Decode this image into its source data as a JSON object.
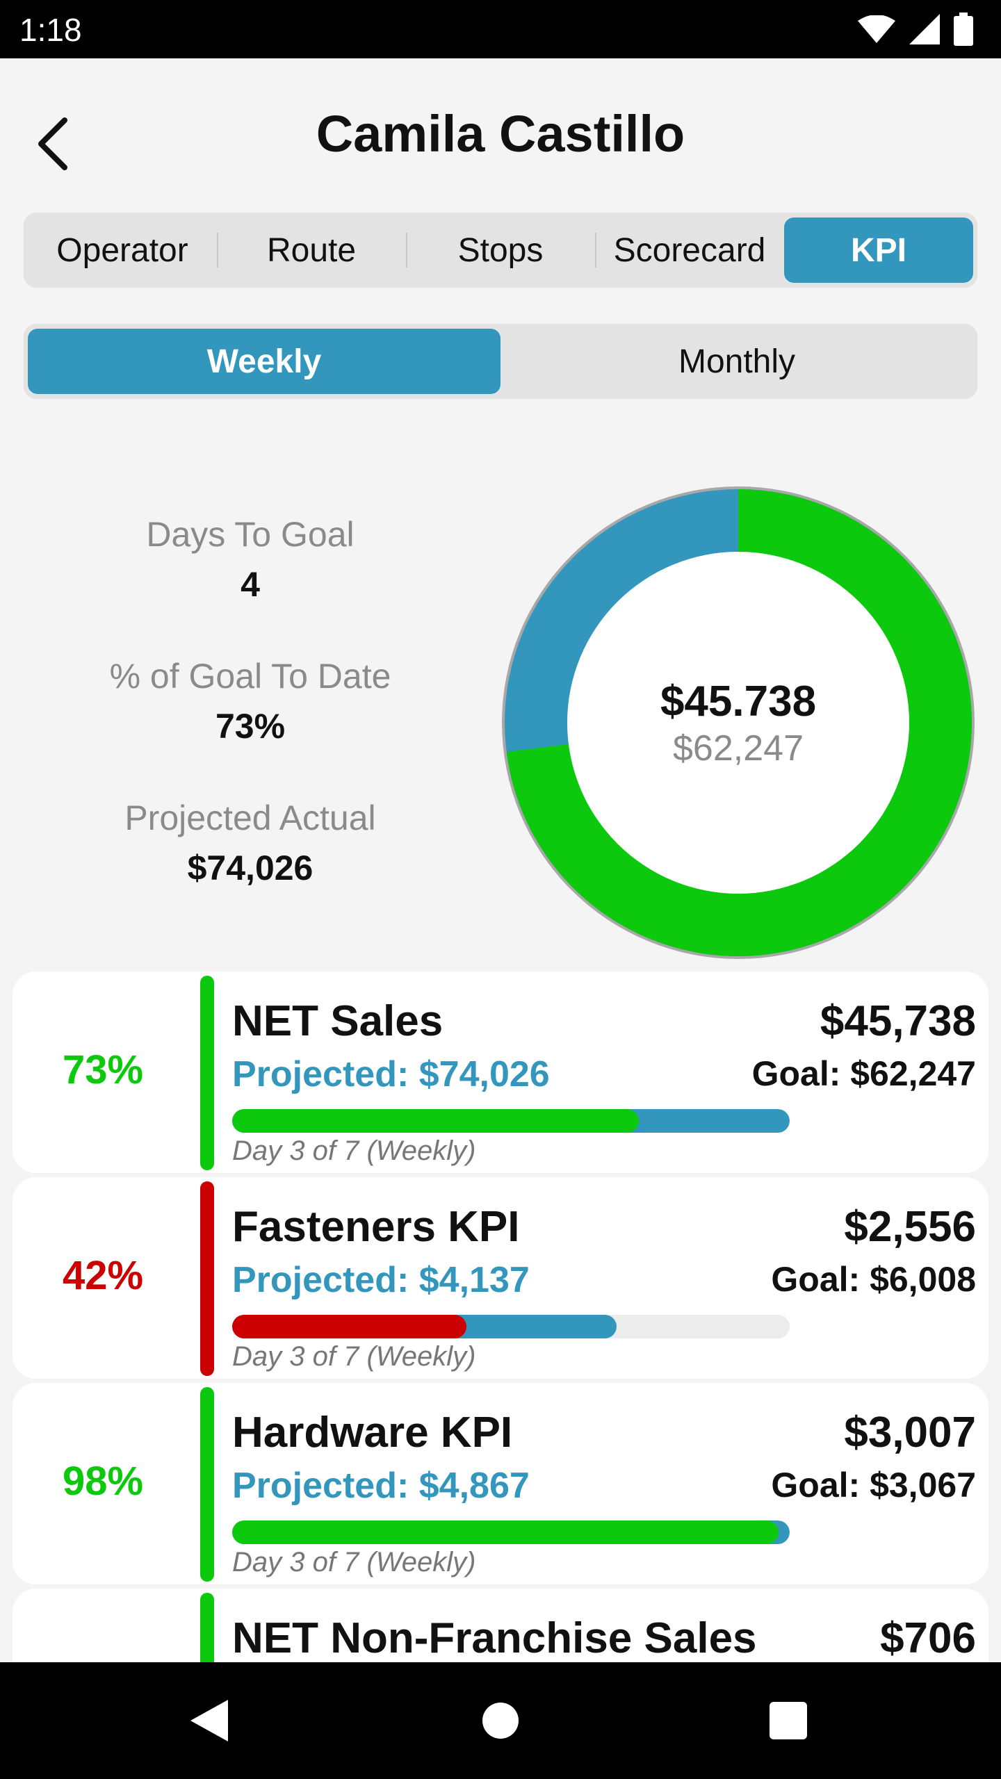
{
  "status_bar": {
    "time": "1:18"
  },
  "header": {
    "title": "Camila Castillo"
  },
  "tabs": [
    {
      "label": "Operator",
      "active": false
    },
    {
      "label": "Route",
      "active": false
    },
    {
      "label": "Stops",
      "active": false
    },
    {
      "label": "Scorecard",
      "active": false
    },
    {
      "label": "KPI",
      "active": true
    }
  ],
  "period": {
    "weekly": "Weekly",
    "monthly": "Monthly",
    "selected": "Weekly"
  },
  "summary": {
    "days_to_goal_label": "Days To Goal",
    "days_to_goal_value": "4",
    "pct_goal_label": "% of Goal To Date",
    "pct_goal_value": "73%",
    "projected_label": "Projected Actual",
    "projected_value": "$74,026"
  },
  "donut": {
    "actual_label": "$45.738",
    "goal_label": "$62,247",
    "actual_fraction": 0.73,
    "actual_color": "#0dc90d",
    "remaining_color": "#3397bd"
  },
  "colors": {
    "accent": "#3397bd",
    "good": "#0dc90d",
    "bad": "#cc0000"
  },
  "kpis": [
    {
      "pct": "73%",
      "name": "NET Sales",
      "projected": "Projected: $74,026",
      "actual": "$45,738",
      "goal": "Goal: $62,247",
      "day": "Day 3 of 7 (Weekly)",
      "status": "good",
      "actual_fraction": 0.73,
      "projected_fraction": 1.0
    },
    {
      "pct": "42%",
      "name": "Fasteners KPI",
      "projected": "Projected: $4,137",
      "actual": "$2,556",
      "goal": "Goal: $6,008",
      "day": "Day 3 of 7 (Weekly)",
      "status": "bad",
      "actual_fraction": 0.42,
      "projected_fraction": 0.69
    },
    {
      "pct": "98%",
      "name": "Hardware KPI",
      "projected": "Projected: $4,867",
      "actual": "$3,007",
      "goal": "Goal: $3,067",
      "day": "Day 3 of 7 (Weekly)",
      "status": "good",
      "actual_fraction": 0.98,
      "projected_fraction": 1.0
    },
    {
      "pct": "",
      "name": "NET Non-Franchise Sales",
      "projected": "",
      "actual": "$706",
      "goal": "",
      "day": "",
      "status": "good",
      "actual_fraction": 0,
      "projected_fraction": 0
    }
  ]
}
